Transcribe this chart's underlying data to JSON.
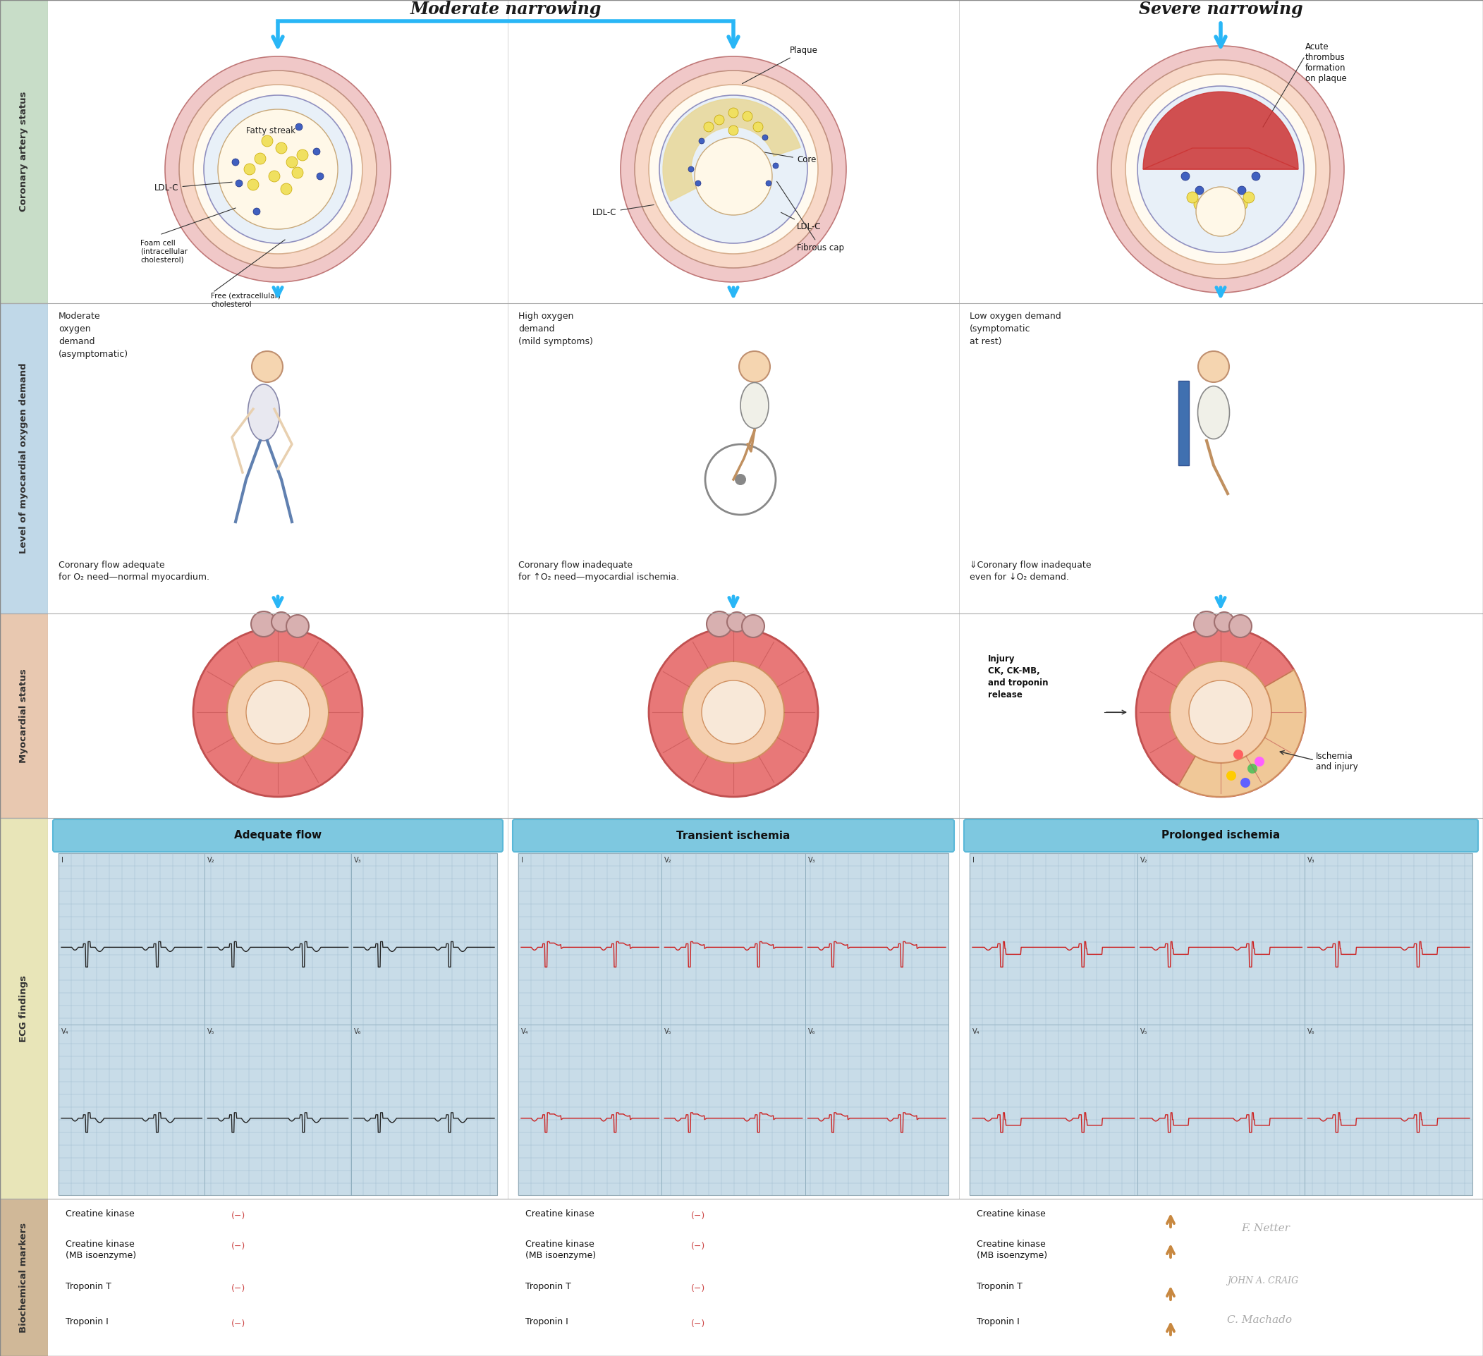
{
  "fig_width": 21.03,
  "fig_height": 19.23,
  "background_color": "#FFFFFF",
  "row_labels": [
    "Coronary artery status",
    "Level of myocardial oxygen demand",
    "Myocardial status",
    "ECG findings",
    "Biochemical markers"
  ],
  "row_colors": [
    "#c8ddc8",
    "#c0d8e8",
    "#e8c8b0",
    "#e8e5b8",
    "#d0b898"
  ],
  "col_subcaptions": [
    "Adequate flow",
    "Transient ischemia",
    "Prolonged ischemia"
  ],
  "moderate_header": "Moderate narrowing",
  "severe_header": "Severe narrowing",
  "arrow_color": "#29B6F6",
  "oxygen_demand_texts": [
    "Moderate\noxygen\ndemand\n(asymptomatic)",
    "High oxygen\ndemand\n(mild symptoms)",
    "Low oxygen demand\n(symptomatic\nat rest)"
  ],
  "flow_texts": [
    "Coronary flow adequate\nfor O₂ need—normal myocardium.",
    "Coronary flow inadequate\nfor ↑O₂ need—myocardial ischemia.",
    "⇓Coronary flow inadequate\neven for ↓O₂ demand."
  ],
  "biochem_markers": [
    "Creatine kinase",
    "Creatine kinase\n(MB isoenzyme)",
    "Troponin T",
    "Troponin I"
  ],
  "neg_symbol": "(−)",
  "injury_text": "Injury\nCK, CK-MB,\nand troponin\nrelease",
  "ischemia_text": "Ischemia\nand injury",
  "ecg_grid_color": "#c8dce8",
  "ecg_banner_color": "#7ec8e0",
  "arrow_up": "↑",
  "arrow_down": "↓"
}
